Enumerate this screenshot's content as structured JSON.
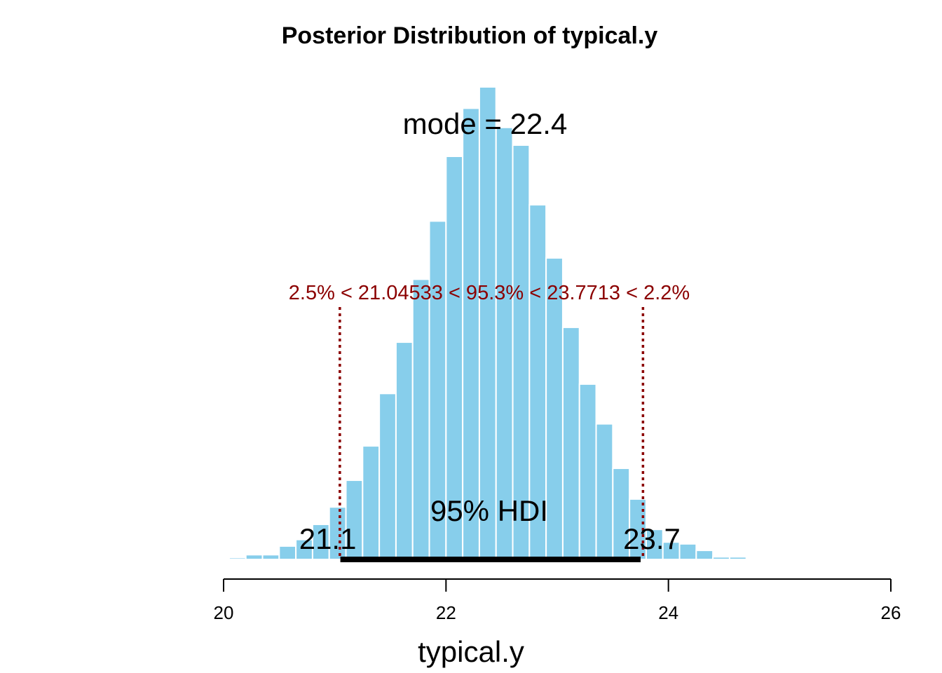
{
  "chart_data": {
    "type": "bar",
    "title": "Posterior Distribution of typical.y",
    "xlabel": "typical.y",
    "ylabel": "",
    "xlim": [
      20,
      26
    ],
    "x_ticks": [
      "20",
      "22",
      "24",
      "26"
    ],
    "bar_color": "#87ceeb",
    "bin_width": 0.15,
    "bins": [
      {
        "x0": 20.05,
        "density": 0.005
      },
      {
        "x0": 20.2,
        "density": 0.013
      },
      {
        "x0": 20.35,
        "density": 0.013
      },
      {
        "x0": 20.5,
        "density": 0.037
      },
      {
        "x0": 20.65,
        "density": 0.055
      },
      {
        "x0": 20.8,
        "density": 0.097
      },
      {
        "x0": 20.95,
        "density": 0.145
      },
      {
        "x0": 21.1,
        "density": 0.219
      },
      {
        "x0": 21.25,
        "density": 0.314
      },
      {
        "x0": 21.4,
        "density": 0.459
      },
      {
        "x0": 21.55,
        "density": 0.601
      },
      {
        "x0": 21.7,
        "density": 0.775
      },
      {
        "x0": 21.85,
        "density": 0.936
      },
      {
        "x0": 22.0,
        "density": 1.115
      },
      {
        "x0": 22.15,
        "density": 1.248
      },
      {
        "x0": 22.3,
        "density": 1.307
      },
      {
        "x0": 22.45,
        "density": 1.195
      },
      {
        "x0": 22.6,
        "density": 1.146
      },
      {
        "x0": 22.75,
        "density": 0.981
      },
      {
        "x0": 22.9,
        "density": 0.834
      },
      {
        "x0": 23.05,
        "density": 0.642
      },
      {
        "x0": 23.2,
        "density": 0.485
      },
      {
        "x0": 23.35,
        "density": 0.375
      },
      {
        "x0": 23.5,
        "density": 0.252
      },
      {
        "x0": 23.65,
        "density": 0.167
      },
      {
        "x0": 23.8,
        "density": 0.083
      },
      {
        "x0": 23.95,
        "density": 0.048
      },
      {
        "x0": 24.1,
        "density": 0.043
      },
      {
        "x0": 24.25,
        "density": 0.025
      },
      {
        "x0": 24.4,
        "density": 0.007
      },
      {
        "x0": 24.55,
        "density": 0.007
      }
    ],
    "mode_label": "mode = 22.4",
    "hdi": {
      "label": "95% HDI",
      "low": 21.05,
      "high": 23.75,
      "low_label": "21.1",
      "high_label": "23.7"
    },
    "comp_val": {
      "text": "2.5% < 21.04533 < 95.3% < 23.7713 < 2.2%",
      "low": 21.04533,
      "high": 23.7713,
      "color": "#8b0000"
    }
  }
}
